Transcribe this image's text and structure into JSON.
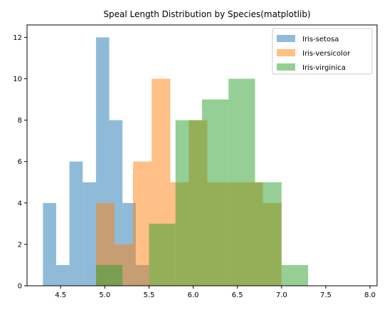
{
  "chart_data": {
    "type": "bar",
    "subtype": "histogram",
    "title": "Speal Length Distribution by Species(matplotlib)",
    "xlabel": "",
    "ylabel": "",
    "xlim": [
      4.12,
      8.08
    ],
    "ylim": [
      0,
      12.6
    ],
    "x_ticks": [
      4.5,
      5.0,
      5.5,
      6.0,
      6.5,
      7.0,
      7.5,
      8.0
    ],
    "x_tick_labels": [
      "4.5",
      "5.0",
      "5.5",
      "6.0",
      "6.5",
      "7.0",
      "7.5",
      "8.0"
    ],
    "y_ticks": [
      0,
      2,
      4,
      6,
      8,
      10,
      12
    ],
    "y_tick_labels": [
      "0",
      "2",
      "4",
      "6",
      "8",
      "10",
      "12"
    ],
    "grid": false,
    "legend_position": "top-right",
    "alpha": 0.5,
    "series": [
      {
        "name": "Iris-setosa",
        "color": "#1f77b4",
        "bin_edges": [
          4.3,
          4.45,
          4.6,
          4.75,
          4.9,
          5.05,
          5.2,
          5.35,
          5.5,
          5.65,
          5.8
        ],
        "counts": [
          4,
          1,
          6,
          5,
          12,
          8,
          4,
          1,
          0,
          0
        ]
      },
      {
        "name": "Iris-versicolor",
        "color": "#ff7f0e",
        "bin_edges": [
          4.9,
          5.11,
          5.32,
          5.53,
          5.74,
          5.95,
          6.16,
          6.37,
          6.58,
          6.79,
          7.0
        ],
        "counts": [
          4,
          2,
          6,
          10,
          5,
          8,
          5,
          5,
          5,
          4
        ]
      },
      {
        "name": "Iris-virginica",
        "color": "#2ca02c",
        "bin_edges": [
          4.9,
          5.2,
          5.5,
          5.8,
          6.1,
          6.4,
          6.7,
          7.0,
          7.3,
          7.6,
          7.9
        ],
        "counts": [
          1,
          0,
          3,
          8,
          9,
          10,
          5,
          1,
          0,
          0
        ]
      }
    ]
  }
}
